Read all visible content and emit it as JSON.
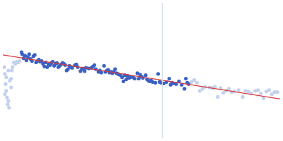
{
  "chart_data": {
    "type": "scatter",
    "xlim": [
      0,
      400
    ],
    "ylim": [
      0,
      200
    ],
    "tick_labels": false,
    "grid": false,
    "series": [
      {
        "type": "scatter",
        "color": "#c2d1ec",
        "marker": "circle",
        "x": [
          2,
          3,
          4,
          5,
          6,
          7,
          8,
          9,
          3,
          10,
          12,
          13,
          14,
          12,
          16,
          18,
          20,
          22,
          24,
          8,
          5
        ],
        "values": [
          105,
          95,
          80,
          70,
          60,
          50,
          55,
          45,
          65,
          85,
          88,
          100,
          105,
          75,
          112,
          110,
          113,
          112,
          114,
          100,
          90
        ]
      },
      {
        "type": "scatter",
        "color": "#c2d1ec",
        "marker": "circle",
        "x": [
          272,
          276,
          280,
          284,
          288,
          292,
          298,
          302,
          306,
          310,
          314,
          318,
          322,
          326,
          330,
          334,
          340,
          346,
          350,
          354,
          358,
          364,
          368,
          372,
          376,
          380,
          384,
          388,
          392,
          396
        ],
        "values": [
          83,
          86,
          82,
          70,
          73,
          76,
          75,
          74,
          76,
          61,
          74,
          67,
          70,
          73,
          68,
          69,
          71,
          61,
          70,
          69,
          66,
          70,
          71,
          66,
          59,
          69,
          71,
          65,
          68,
          68
        ]
      },
      {
        "type": "scatter",
        "color": "#3a62c4",
        "marker": "circle",
        "x": [
          27,
          28,
          30,
          32,
          34,
          36,
          38,
          40,
          42,
          44,
          46,
          48,
          50,
          52,
          54,
          56,
          58,
          60,
          62,
          64,
          66,
          68,
          70,
          72,
          74,
          76,
          78,
          80,
          82,
          84,
          86,
          88,
          90,
          92,
          94,
          96,
          98,
          100,
          104,
          106,
          108,
          112,
          114,
          116,
          118,
          120,
          124,
          128,
          130,
          132,
          134,
          138,
          140,
          142,
          146,
          148,
          150,
          152,
          154,
          156,
          158,
          160,
          162,
          164,
          166,
          168,
          170,
          172,
          174,
          176,
          178,
          180,
          182,
          184,
          188,
          190,
          194,
          196,
          198,
          200,
          202,
          206,
          208,
          210,
          212,
          214,
          216,
          220,
          224,
          226,
          228,
          232,
          236,
          240,
          242,
          244,
          246,
          250,
          254,
          258,
          262,
          264,
          266,
          268
        ],
        "values": [
          127,
          124,
          118,
          122,
          115,
          120,
          124,
          117,
          114,
          121,
          123,
          112,
          114,
          116,
          113,
          114,
          110,
          106,
          112,
          105,
          109,
          108,
          111,
          113,
          107,
          110,
          111,
          105,
          107,
          109,
          111,
          110,
          108,
          100,
          102,
          107,
          105,
          104,
          108,
          109,
          105,
          99,
          102,
          103,
          99,
          104,
          103,
          104,
          106,
          108,
          102,
          98,
          100,
          97,
          107,
          98,
          100,
          101,
          97,
          98,
          96,
          98,
          102,
          96,
          95,
          94,
          93,
          90,
          84,
          93,
          87,
          92,
          89,
          90,
          90,
          88,
          96,
          88,
          94,
          91,
          89,
          93,
          87,
          85,
          84,
          85,
          83,
          82,
          95,
          83,
          82,
          81,
          83,
          88,
          79,
          82,
          81,
          80,
          84,
          79,
          73,
          88,
          82,
          80
        ]
      },
      {
        "type": "line",
        "color": "#d5dcea",
        "line_style": "solid",
        "x": [
          230,
          230
        ],
        "values": [
          0,
          200
        ]
      },
      {
        "type": "line",
        "color": "#d9393e",
        "line_style": "solid",
        "x": [
          0,
          400
        ],
        "values": [
          123,
          58
        ]
      }
    ]
  }
}
